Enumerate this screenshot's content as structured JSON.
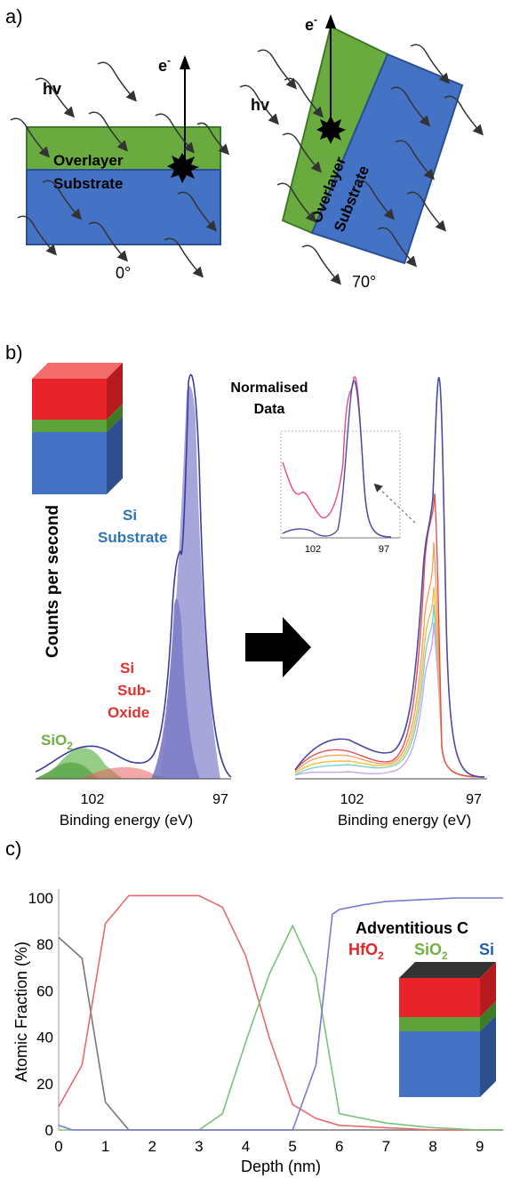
{
  "panel_a": {
    "label": "a)",
    "left": {
      "hv": "hv",
      "electron": "e",
      "electron_sup": "-",
      "overlayer": "Overlayer",
      "substrate": "Substrate",
      "angle": "0°"
    },
    "right": {
      "hv": "hv",
      "electron": "e",
      "electron_sup": "-",
      "overlayer": "Overlayer",
      "substrate": "Substrate",
      "angle": "70°"
    },
    "colors": {
      "overlayer": "#6aab3f",
      "substrate": "#4472c4"
    }
  },
  "panel_b": {
    "label": "b)",
    "ylabel": "Counts per second",
    "normalised_title_1": "Normalised",
    "normalised_title_2": "Data",
    "si_label_1": "Si",
    "si_label_2": "Substrate",
    "subox_1": "Si",
    "subox_2": "Sub-",
    "subox_3": "Oxide",
    "sio2": "SiO",
    "sio2_sub": "2",
    "left_ticks": [
      "102",
      "97"
    ],
    "right_ticks": [
      "102",
      "97"
    ],
    "inset_ticks": [
      "102",
      "97"
    ],
    "xlabel": "Binding energy (eV)"
  },
  "panel_c": {
    "label": "c)",
    "legend_c": "Adventitious C",
    "legend_hfo2": "HfO",
    "legend_hfo2_sub": "2",
    "legend_sio2": "SiO",
    "legend_sio2_sub": "2",
    "legend_si": "Si",
    "colors": {
      "hfo2": "#e8463d",
      "sio2": "#70b866",
      "si": "#1f5fb0",
      "c": "#000000"
    }
  },
  "chart_data": {
    "type": "line",
    "xlabel": "Depth (nm)",
    "ylabel": "Atomic Fraction (%)",
    "xlim": [
      0,
      9.5
    ],
    "ylim": [
      0,
      100
    ],
    "xticks": [
      "0",
      "1",
      "2",
      "3",
      "4",
      "5",
      "6",
      "7",
      "8",
      "9"
    ],
    "yticks": [
      "0",
      "20",
      "40",
      "60",
      "80",
      "100"
    ],
    "series": [
      {
        "name": "Adventitious C",
        "color": "#777777",
        "x": [
          0,
          0.5,
          1,
          1.5,
          2,
          3,
          4,
          5,
          6,
          7,
          8,
          9,
          9.5
        ],
        "y": [
          83,
          74,
          12,
          0,
          0,
          0,
          0,
          0,
          0,
          0,
          0,
          0,
          0
        ]
      },
      {
        "name": "HfO2",
        "color": "#e86a6a",
        "x": [
          0,
          0.5,
          1,
          1.5,
          2,
          2.5,
          3,
          3.5,
          4,
          4.5,
          5,
          5.5,
          6,
          7,
          8,
          9,
          9.5
        ],
        "y": [
          10,
          28,
          89,
          101,
          101,
          101,
          101,
          96,
          75,
          40,
          11,
          5,
          2,
          1,
          0,
          0,
          0
        ]
      },
      {
        "name": "SiO2",
        "color": "#7ac27a",
        "x": [
          0,
          1,
          2,
          3,
          3.5,
          4,
          4.5,
          5,
          5.5,
          6,
          7,
          8,
          9,
          9.5
        ],
        "y": [
          0,
          0,
          0,
          0,
          7,
          38,
          67,
          88,
          66,
          7,
          3,
          1,
          0,
          0
        ]
      },
      {
        "name": "Si",
        "color": "#7a7ad0",
        "x": [
          0,
          0.3,
          1,
          2,
          3,
          4,
          5,
          5.5,
          5.85,
          6,
          6.5,
          7,
          7.5,
          8,
          8.5,
          9,
          9.5
        ],
        "y": [
          2,
          0,
          0,
          0,
          0,
          0,
          0,
          28,
          93,
          95,
          97,
          98.5,
          99,
          99.5,
          100,
          100,
          100
        ]
      }
    ]
  }
}
